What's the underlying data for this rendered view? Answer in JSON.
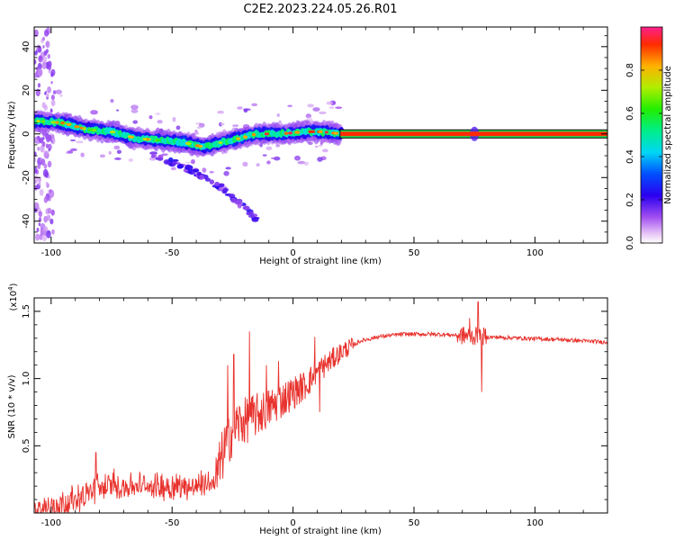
{
  "title": "C2E2.2023.224.05.26.R01",
  "colors": {
    "snr_line": "#e8322d",
    "axis": "#000000",
    "spectrogram_background": "#ffffff"
  },
  "chart_data": [
    {
      "type": "heatmap",
      "name": "spectrogram",
      "xlabel": "Height of straight line (km)",
      "ylabel": "Frequency (Hz)",
      "xlim": [
        -107,
        130
      ],
      "ylim": [
        -50,
        49
      ],
      "xticks": [
        -100,
        -50,
        0,
        50,
        100
      ],
      "xtick_labels": [
        "-100",
        "-50",
        "0",
        "50",
        "100"
      ],
      "yticks": [
        -40,
        -20,
        0,
        20,
        40
      ],
      "ytick_labels": [
        "-40",
        "-20",
        "0",
        "20",
        "40"
      ],
      "colorbar": {
        "label": "Normalized spectral amplitude",
        "range": [
          0,
          1
        ],
        "ticks": [
          0.0,
          0.2,
          0.4,
          0.6,
          0.8
        ],
        "tick_labels": [
          "0.0",
          "0.2",
          "0.4",
          "0.6",
          "0.8"
        ],
        "colormap": "rainbow (white/violet at 0 to red at 1)"
      },
      "features": {
        "main_ridge_frequency_hz": [
          {
            "x": -107,
            "y": 6
          },
          {
            "x": -95,
            "y": 5
          },
          {
            "x": -85,
            "y": 2
          },
          {
            "x": -75,
            "y": 1
          },
          {
            "x": -65,
            "y": -2
          },
          {
            "x": -55,
            "y": -3
          },
          {
            "x": -45,
            "y": -4
          },
          {
            "x": -37,
            "y": -6
          },
          {
            "x": -30,
            "y": -4
          },
          {
            "x": -22,
            "y": -2
          },
          {
            "x": -15,
            "y": 0
          },
          {
            "x": -5,
            "y": 0
          },
          {
            "x": 5,
            "y": 1
          },
          {
            "x": 12,
            "y": 1
          },
          {
            "x": 20,
            "y": 0
          }
        ],
        "secondary_branch_hz": [
          {
            "x": -58,
            "y": -9
          },
          {
            "x": -47,
            "y": -14
          },
          {
            "x": -38,
            "y": -19
          },
          {
            "x": -30,
            "y": -24
          },
          {
            "x": -15,
            "y": -39
          }
        ],
        "steady_tone": {
          "x_start": 20,
          "x_end": 130,
          "y": 0,
          "amplitude": 1.0
        },
        "noise_cluster_x": -103
      }
    },
    {
      "type": "line",
      "name": "snr",
      "xlabel": "Height of straight line (km)",
      "ylabel": "SNR (10 * v/v)",
      "y_multiplier_label": "(x10",
      "y_multiplier_exponent": "4",
      "y_multiplier_close": ")",
      "xlim": [
        -107,
        130
      ],
      "ylim": [
        0,
        1.6
      ],
      "xticks": [
        -100,
        -50,
        0,
        50,
        100
      ],
      "xtick_labels": [
        "-100",
        "-50",
        "0",
        "50",
        "100"
      ],
      "yticks": [
        0.5,
        1.0,
        1.5
      ],
      "ytick_labels": [
        "0.5",
        "1.0",
        "1.5"
      ],
      "series": [
        {
          "color": "#e8322d",
          "envelope": [
            {
              "x": -107,
              "y": 0.02
            },
            {
              "x": -100,
              "y": 0.05
            },
            {
              "x": -92,
              "y": 0.09
            },
            {
              "x": -85,
              "y": 0.14
            },
            {
              "x": -80,
              "y": 0.2
            },
            {
              "x": -70,
              "y": 0.2
            },
            {
              "x": -60,
              "y": 0.2
            },
            {
              "x": -50,
              "y": 0.2
            },
            {
              "x": -40,
              "y": 0.2
            },
            {
              "x": -32,
              "y": 0.24
            },
            {
              "x": -28,
              "y": 0.5
            },
            {
              "x": -24,
              "y": 0.65
            },
            {
              "x": -18,
              "y": 0.7
            },
            {
              "x": -10,
              "y": 0.78
            },
            {
              "x": -3,
              "y": 0.86
            },
            {
              "x": 5,
              "y": 0.95
            },
            {
              "x": 12,
              "y": 1.08
            },
            {
              "x": 20,
              "y": 1.2
            },
            {
              "x": 28,
              "y": 1.28
            },
            {
              "x": 35,
              "y": 1.31
            },
            {
              "x": 45,
              "y": 1.33
            },
            {
              "x": 60,
              "y": 1.33
            },
            {
              "x": 70,
              "y": 1.32
            },
            {
              "x": 80,
              "y": 1.31
            },
            {
              "x": 95,
              "y": 1.3
            },
            {
              "x": 110,
              "y": 1.29
            },
            {
              "x": 130,
              "y": 1.27
            }
          ],
          "spikes": [
            {
              "x": -81.5,
              "y": 0.45
            },
            {
              "x": -74,
              "y": 0.33
            },
            {
              "x": -27,
              "y": 1.1
            },
            {
              "x": -24.5,
              "y": 1.18
            },
            {
              "x": -18,
              "y": 1.35
            },
            {
              "x": -11,
              "y": 1.1
            },
            {
              "x": -6,
              "y": 1.13
            },
            {
              "x": 9,
              "y": 1.31
            },
            {
              "x": 11,
              "y": 0.75
            },
            {
              "x": 73,
              "y": 1.45
            },
            {
              "x": 76.5,
              "y": 1.57
            },
            {
              "x": 78,
              "y": 0.9
            }
          ]
        }
      ]
    }
  ]
}
